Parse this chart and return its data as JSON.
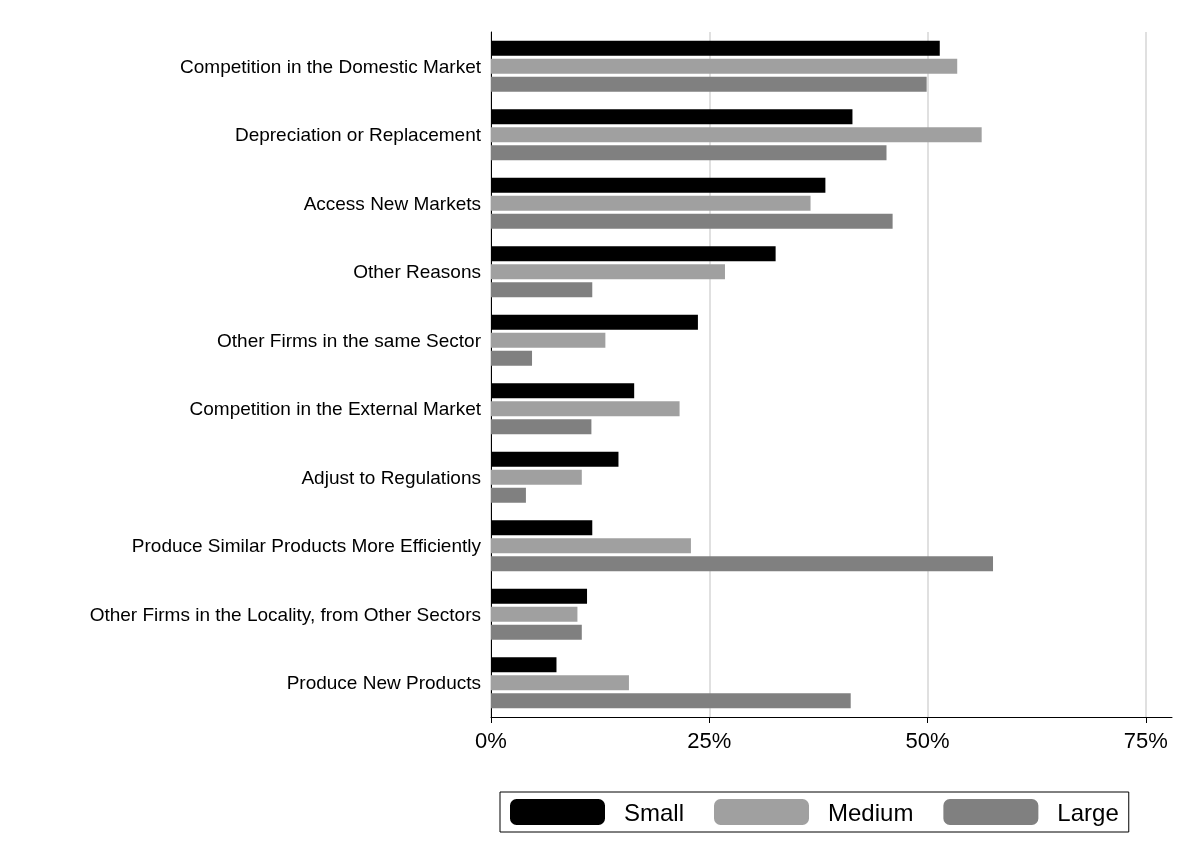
{
  "chart_data": {
    "type": "bar",
    "orientation": "horizontal",
    "categories": [
      "Competition in the Domestic Market",
      "Depreciation or Replacement",
      "Access New Markets",
      "Other Reasons",
      "Other Firms in the same Sector",
      "Competition in the External Market",
      "Adjust to Regulations",
      "Produce Similar Products More Efficiently",
      "Other Firms in the Locality, from Other Sectors",
      "Produce New Products"
    ],
    "series": [
      {
        "name": "Small",
        "color": "#000000",
        "values": [
          51.4,
          41.4,
          38.3,
          32.6,
          23.7,
          16.4,
          14.6,
          11.6,
          11.0,
          7.5
        ]
      },
      {
        "name": "Medium",
        "color": "#a0a0a0",
        "values": [
          53.4,
          56.2,
          36.6,
          26.8,
          13.1,
          21.6,
          10.4,
          22.9,
          9.9,
          15.8
        ]
      },
      {
        "name": "Large",
        "color": "#808080",
        "values": [
          49.9,
          45.3,
          46.0,
          11.6,
          4.7,
          11.5,
          4.0,
          57.5,
          10.4,
          41.2
        ]
      }
    ],
    "xlim": [
      0,
      78
    ],
    "xticks": [
      {
        "value": 0,
        "label": "0%"
      },
      {
        "value": 25,
        "label": "25%"
      },
      {
        "value": 50,
        "label": "50%"
      },
      {
        "value": 75,
        "label": "75%"
      }
    ],
    "grid": "x",
    "legend": "bottom"
  }
}
